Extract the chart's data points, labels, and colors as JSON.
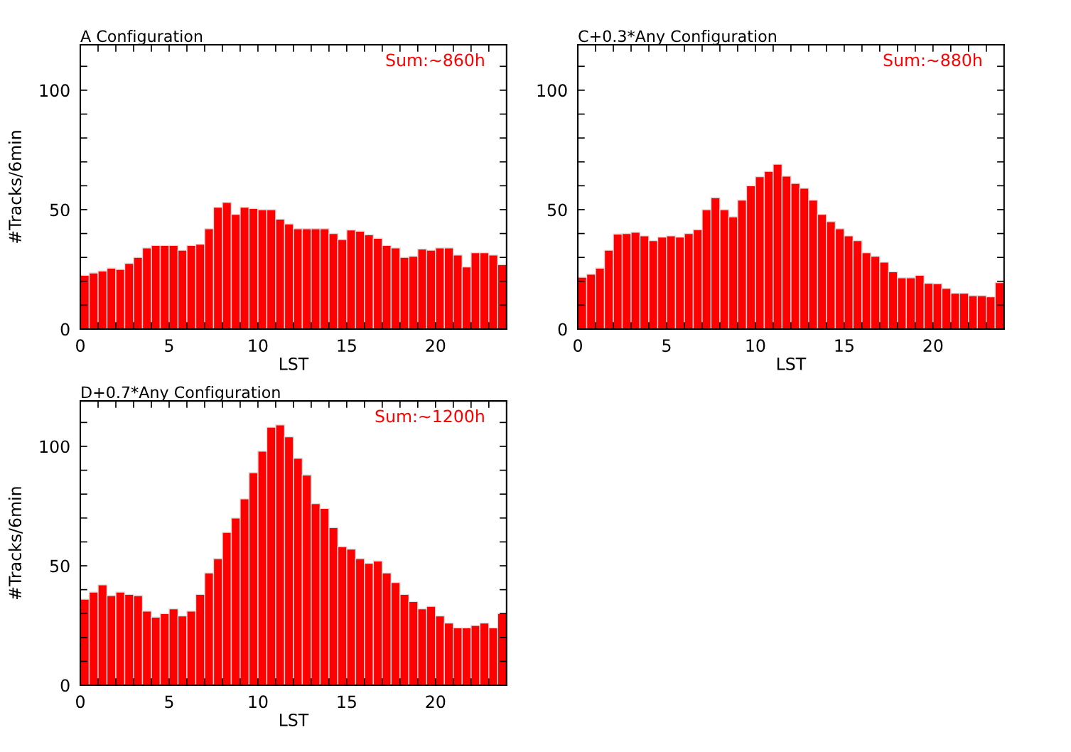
{
  "chart_data": [
    {
      "type": "histogram",
      "title": "A Configuration",
      "xlabel": "LST",
      "ylabel": "#Tracks/6min",
      "color": "#ff0000",
      "annotations": [
        "Sum:~860h"
      ],
      "bins": [
        0,
        0.5,
        1,
        1.5,
        2,
        2.5,
        3,
        3.5,
        4,
        4.5,
        5,
        5.5,
        6,
        6.5,
        7,
        7.5,
        8,
        8.5,
        9,
        9.5,
        10,
        10.5,
        11,
        11.5,
        12,
        12.5,
        13,
        13.5,
        14,
        14.5,
        15,
        15.5,
        16,
        16.5,
        17,
        17.5,
        18,
        18.5,
        19,
        19.5,
        20,
        20.5,
        21,
        21.5,
        22,
        22.5,
        23,
        23.5,
        24
      ],
      "values": [
        22.5,
        23.5,
        24.3,
        25.5,
        25,
        27.5,
        30,
        34,
        35,
        35,
        35,
        33,
        35,
        35.5,
        42,
        51,
        53,
        48,
        51,
        50.5,
        50,
        50,
        46,
        44,
        42,
        42,
        42,
        42,
        40,
        37.5,
        41.5,
        41,
        39.5,
        38,
        35,
        34,
        30,
        30.5,
        33.5,
        33,
        34,
        34,
        31,
        26,
        32,
        32,
        31,
        27
      ],
      "xlim": [
        0,
        24
      ],
      "ylim": [
        0,
        119
      ],
      "xticks": [
        0,
        {
          "value": 1,
          "label": null
        },
        {
          "value": 2,
          "label": null
        },
        {
          "value": 3,
          "label": null
        },
        {
          "value": 4,
          "label": null
        },
        5,
        {
          "value": 6,
          "label": null
        },
        {
          "value": 7,
          "label": null
        },
        {
          "value": 8,
          "label": null
        },
        {
          "value": 9,
          "label": null
        },
        10,
        {
          "value": 11,
          "label": null
        },
        {
          "value": 12,
          "label": null
        },
        {
          "value": 13,
          "label": null
        },
        {
          "value": 14,
          "label": null
        },
        15,
        {
          "value": 16,
          "label": null
        },
        {
          "value": 17,
          "label": null
        },
        {
          "value": 18,
          "label": null
        },
        {
          "value": 19,
          "label": null
        },
        20,
        {
          "value": 21,
          "label": null
        },
        {
          "value": 22,
          "label": null
        },
        {
          "value": 23,
          "label": null
        }
      ],
      "yticks": [
        0,
        {
          "value": 10,
          "label": null
        },
        {
          "value": 20,
          "label": null
        },
        {
          "value": 30,
          "label": null
        },
        {
          "value": 40,
          "label": null
        },
        50,
        {
          "value": 60,
          "label": null
        },
        {
          "value": 70,
          "label": null
        },
        {
          "value": 80,
          "label": null
        },
        {
          "value": 90,
          "label": null
        },
        100,
        {
          "value": 110,
          "label": null
        }
      ],
      "grid": false,
      "legend": false
    },
    {
      "type": "histogram",
      "title": "C+0.3*Any Configuration",
      "xlabel": "LST",
      "color": "#ff0000",
      "annotations": [
        "Sum:~880h"
      ],
      "bins": [
        0,
        0.5,
        1,
        1.5,
        2,
        2.5,
        3,
        3.5,
        4,
        4.5,
        5,
        5.5,
        6,
        6.5,
        7,
        7.5,
        8,
        8.5,
        9,
        9.5,
        10,
        10.5,
        11,
        11.5,
        12,
        12.5,
        13,
        13.5,
        14,
        14.5,
        15,
        15.5,
        16,
        16.5,
        17,
        17.5,
        18,
        18.5,
        19,
        19.5,
        20,
        20.5,
        21,
        21.5,
        22,
        22.5,
        23,
        23.5,
        24
      ],
      "values": [
        21.7,
        23,
        25.5,
        33,
        39.8,
        40,
        40.5,
        39,
        37,
        38.5,
        39,
        38.5,
        40,
        41.6,
        50,
        55,
        50,
        47,
        54,
        60,
        63.8,
        66,
        69,
        64,
        61,
        59,
        54,
        48,
        45,
        42,
        39,
        37,
        32,
        30.5,
        28,
        24,
        21.5,
        21.5,
        22.5,
        19.2,
        19,
        17,
        15,
        15,
        14,
        14,
        13.5,
        19.5
      ],
      "xlim": [
        0,
        24
      ],
      "ylim": [
        0,
        119
      ],
      "xticks": [
        0,
        {
          "value": 1,
          "label": null
        },
        {
          "value": 2,
          "label": null
        },
        {
          "value": 3,
          "label": null
        },
        {
          "value": 4,
          "label": null
        },
        5,
        {
          "value": 6,
          "label": null
        },
        {
          "value": 7,
          "label": null
        },
        {
          "value": 8,
          "label": null
        },
        {
          "value": 9,
          "label": null
        },
        10,
        {
          "value": 11,
          "label": null
        },
        {
          "value": 12,
          "label": null
        },
        {
          "value": 13,
          "label": null
        },
        {
          "value": 14,
          "label": null
        },
        15,
        {
          "value": 16,
          "label": null
        },
        {
          "value": 17,
          "label": null
        },
        {
          "value": 18,
          "label": null
        },
        {
          "value": 19,
          "label": null
        },
        20,
        {
          "value": 21,
          "label": null
        },
        {
          "value": 22,
          "label": null
        },
        {
          "value": 23,
          "label": null
        }
      ],
      "yticks": [
        0,
        {
          "value": 10,
          "label": null
        },
        {
          "value": 20,
          "label": null
        },
        {
          "value": 30,
          "label": null
        },
        {
          "value": 40,
          "label": null
        },
        50,
        {
          "value": 60,
          "label": null
        },
        {
          "value": 70,
          "label": null
        },
        {
          "value": 80,
          "label": null
        },
        {
          "value": 90,
          "label": null
        },
        100,
        {
          "value": 110,
          "label": null
        }
      ],
      "grid": false,
      "legend": false
    },
    {
      "type": "histogram",
      "title": "D+0.7*Any Configuration",
      "xlabel": "LST",
      "ylabel": "#Tracks/6min",
      "color": "#ff0000",
      "annotations": [
        "Sum:~1200h"
      ],
      "bins": [
        0,
        0.5,
        1,
        1.5,
        2,
        2.5,
        3,
        3.5,
        4,
        4.5,
        5,
        5.5,
        6,
        6.5,
        7,
        7.5,
        8,
        8.5,
        9,
        9.5,
        10,
        10.5,
        11,
        11.5,
        12,
        12.5,
        13,
        13.5,
        14,
        14.5,
        15,
        15.5,
        16,
        16.5,
        17,
        17.5,
        18,
        18.5,
        19,
        19.5,
        20,
        20.5,
        21,
        21.5,
        22,
        22.5,
        23,
        23.5,
        24
      ],
      "values": [
        36,
        39,
        42,
        37.5,
        39,
        38,
        37.5,
        31,
        28.5,
        30,
        32,
        29,
        31,
        38,
        47,
        53,
        64,
        70,
        78,
        89,
        98,
        108,
        109,
        104,
        95,
        88,
        76,
        74,
        66,
        58,
        57,
        53,
        51,
        52,
        47,
        43,
        38,
        35,
        32,
        33,
        29,
        26,
        24,
        24,
        25,
        26,
        24,
        30
      ],
      "xlim": [
        0,
        24
      ],
      "ylim": [
        0,
        119
      ],
      "xticks": [
        0,
        {
          "value": 1,
          "label": null
        },
        {
          "value": 2,
          "label": null
        },
        {
          "value": 3,
          "label": null
        },
        {
          "value": 4,
          "label": null
        },
        5,
        {
          "value": 6,
          "label": null
        },
        {
          "value": 7,
          "label": null
        },
        {
          "value": 8,
          "label": null
        },
        {
          "value": 9,
          "label": null
        },
        10,
        {
          "value": 11,
          "label": null
        },
        {
          "value": 12,
          "label": null
        },
        {
          "value": 13,
          "label": null
        },
        {
          "value": 14,
          "label": null
        },
        15,
        {
          "value": 16,
          "label": null
        },
        {
          "value": 17,
          "label": null
        },
        {
          "value": 18,
          "label": null
        },
        {
          "value": 19,
          "label": null
        },
        20,
        {
          "value": 21,
          "label": null
        },
        {
          "value": 22,
          "label": null
        },
        {
          "value": 23,
          "label": null
        }
      ],
      "yticks": [
        0,
        {
          "value": 10,
          "label": null
        },
        {
          "value": 20,
          "label": null
        },
        {
          "value": 30,
          "label": null
        },
        {
          "value": 40,
          "label": null
        },
        50,
        {
          "value": 60,
          "label": null
        },
        {
          "value": 70,
          "label": null
        },
        {
          "value": 80,
          "label": null
        },
        {
          "value": 90,
          "label": null
        },
        100,
        {
          "value": 110,
          "label": null
        }
      ],
      "grid": false,
      "legend": false
    }
  ]
}
